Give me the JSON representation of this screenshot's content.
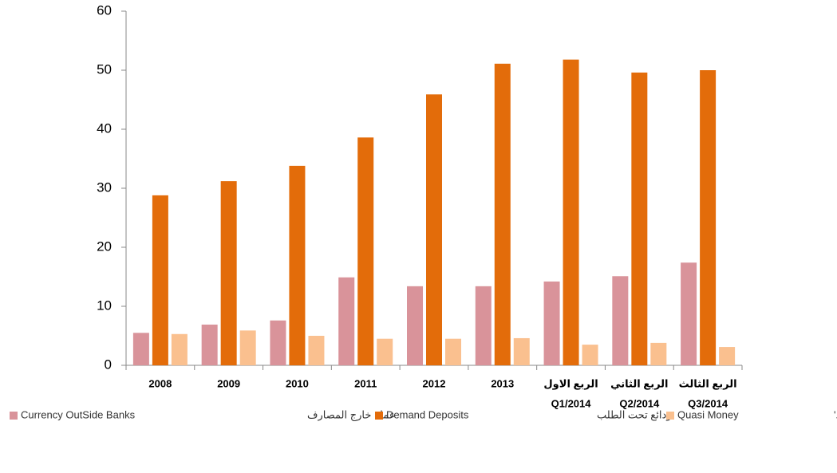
{
  "chart_data": {
    "type": "bar",
    "categories": [
      [
        "2008"
      ],
      [
        "2009"
      ],
      [
        "2010"
      ],
      [
        "2011"
      ],
      [
        "2012"
      ],
      [
        "2013"
      ],
      [
        "الربع الاول",
        "Q1/2014"
      ],
      [
        "الربع الثاني",
        "Q2/2014"
      ],
      [
        "الربع الثالث",
        "Q3/2014"
      ]
    ],
    "series": [
      {
        "name": "Currency OutSide Banks",
        "name_ar": "عملة خارج المصارف",
        "color": "#d9939a",
        "values": [
          5.5,
          6.9,
          7.6,
          14.9,
          13.4,
          13.4,
          14.2,
          15.1,
          17.4
        ]
      },
      {
        "name": "Demand Deposits",
        "name_ar": "ودائع تحت الطلب",
        "color": "#e36c0a",
        "values": [
          28.8,
          31.2,
          33.8,
          38.6,
          45.9,
          51.1,
          51.8,
          49.6,
          50.0
        ]
      },
      {
        "name": "Quasi Money",
        "name_ar": "شبه النقود'",
        "color": "#fac08f",
        "values": [
          5.3,
          5.9,
          5.0,
          4.5,
          4.5,
          4.6,
          3.5,
          3.8,
          3.1
        ]
      }
    ],
    "ylim": [
      0,
      60
    ],
    "yticks": [
      0,
      10,
      20,
      30,
      40,
      50,
      60
    ],
    "grid": false,
    "legend": "bottom"
  }
}
